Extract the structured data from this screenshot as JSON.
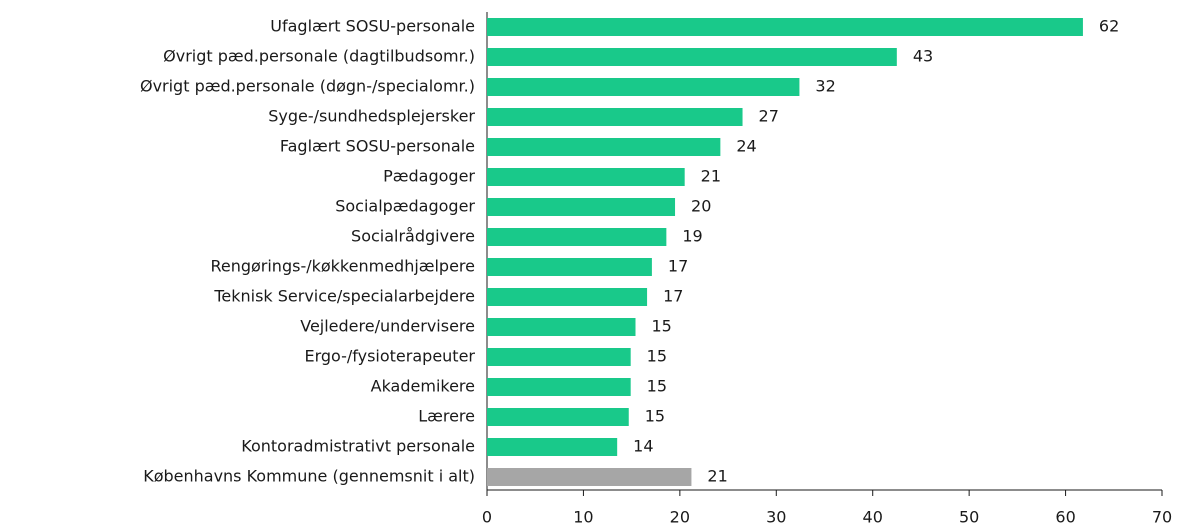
{
  "chart_data": {
    "type": "bar",
    "orientation": "horizontal",
    "categories": [
      "Ufaglært SOSU-personale",
      "Øvrigt pæd.personale (dagtilbudsomr.)",
      "Øvrigt pæd.personale (døgn-/specialomr.)",
      "Syge-/sundhedsplejersker",
      "Faglært SOSU-personale",
      "Pædagoger",
      "Socialpædagoger",
      "Socialrådgivere",
      "Rengørings-/køkkenmedhjælpere",
      "Teknisk Service/specialarbejdere",
      "Vejledere/undervisere",
      "Ergo-/fysioterapeuter",
      "Akademikere",
      "Lærere",
      "Kontoradmistrativt personale",
      "Københavns Kommune (gennemsnit i alt)"
    ],
    "values": [
      61.8,
      42.5,
      32.4,
      26.5,
      24.2,
      20.5,
      19.5,
      18.6,
      17.1,
      16.6,
      15.4,
      14.9,
      14.9,
      14.7,
      13.5,
      21.2
    ],
    "value_labels": [
      "62",
      "43",
      "32",
      "27",
      "24",
      "21",
      "20",
      "19",
      "17",
      "17",
      "15",
      "15",
      "15",
      "15",
      "14",
      "21"
    ],
    "colors": [
      "#19c98a",
      "#19c98a",
      "#19c98a",
      "#19c98a",
      "#19c98a",
      "#19c98a",
      "#19c98a",
      "#19c98a",
      "#19c98a",
      "#19c98a",
      "#19c98a",
      "#19c98a",
      "#19c98a",
      "#19c98a",
      "#19c98a",
      "#a6a6a6"
    ],
    "xlim": [
      0,
      70
    ],
    "xticks": [
      0,
      10,
      20,
      30,
      40,
      50,
      60,
      70
    ]
  }
}
